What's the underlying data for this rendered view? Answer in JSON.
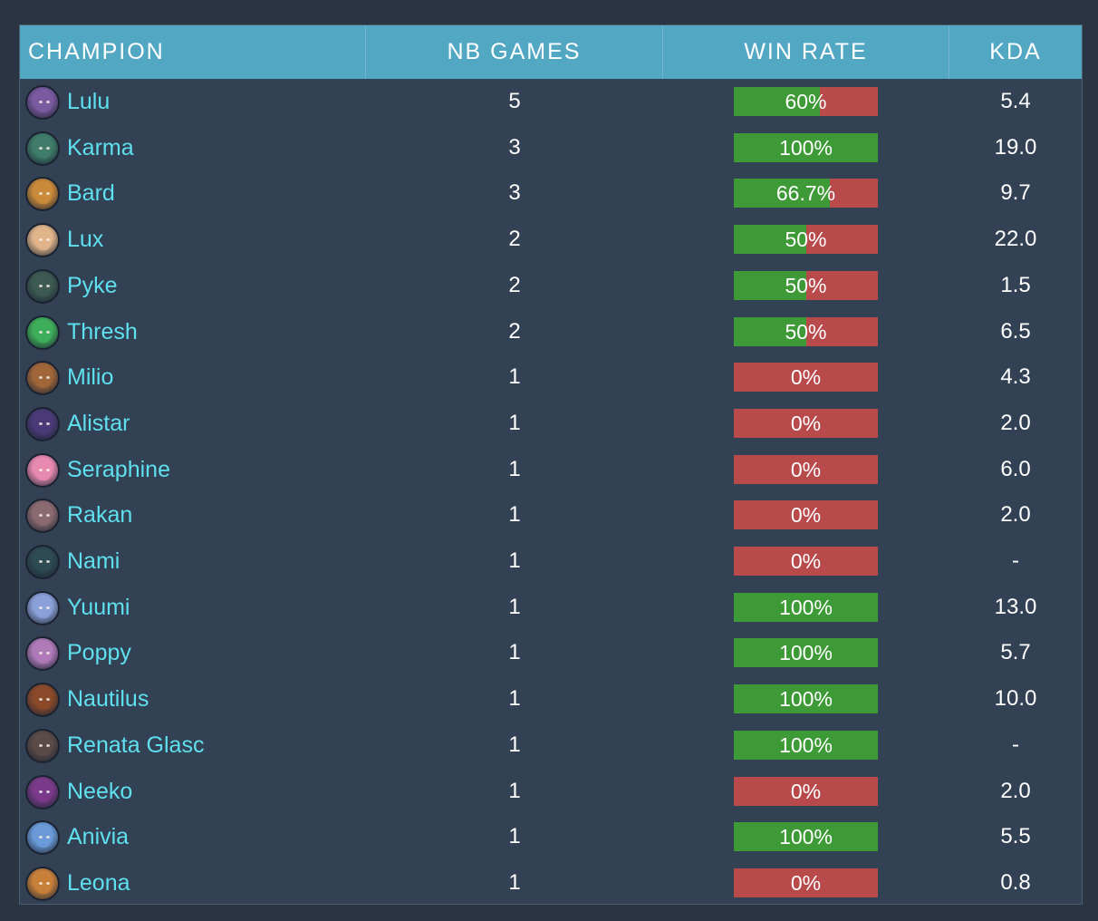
{
  "header": {
    "champion": "CHAMPION",
    "nb_games": "NB GAMES",
    "win_rate": "WIN RATE",
    "kda": "KDA"
  },
  "colors": {
    "header_bg": "#52a7c3",
    "table_bg": "#324153",
    "page_bg": "#2a3442",
    "name_text": "#5fe0ef",
    "win_green": "#3e9a36",
    "loss_red": "#b94a4c"
  },
  "rows": [
    {
      "champion": "Lulu",
      "games": "5",
      "win_rate": "60%",
      "win_fraction": 0.6,
      "kda": "5.4",
      "icon": "lulu-avatar-icon",
      "tone": "#7b5aa0"
    },
    {
      "champion": "Karma",
      "games": "3",
      "win_rate": "100%",
      "win_fraction": 1.0,
      "kda": "19.0",
      "icon": "karma-avatar-icon",
      "tone": "#3f7d6a"
    },
    {
      "champion": "Bard",
      "games": "3",
      "win_rate": "66.7%",
      "win_fraction": 0.667,
      "kda": "9.7",
      "icon": "bard-avatar-icon",
      "tone": "#c98a3a"
    },
    {
      "champion": "Lux",
      "games": "2",
      "win_rate": "50%",
      "win_fraction": 0.5,
      "kda": "22.0",
      "icon": "lux-avatar-icon",
      "tone": "#e0b48a"
    },
    {
      "champion": "Pyke",
      "games": "2",
      "win_rate": "50%",
      "win_fraction": 0.5,
      "kda": "1.5",
      "icon": "pyke-avatar-icon",
      "tone": "#3d5a52"
    },
    {
      "champion": "Thresh",
      "games": "2",
      "win_rate": "50%",
      "win_fraction": 0.5,
      "kda": "6.5",
      "icon": "thresh-avatar-icon",
      "tone": "#3fae5a"
    },
    {
      "champion": "Milio",
      "games": "1",
      "win_rate": "0%",
      "win_fraction": 0.0,
      "kda": "4.3",
      "icon": "milio-avatar-icon",
      "tone": "#a0663a"
    },
    {
      "champion": "Alistar",
      "games": "1",
      "win_rate": "0%",
      "win_fraction": 0.0,
      "kda": "2.0",
      "icon": "alistar-avatar-icon",
      "tone": "#4a3a78"
    },
    {
      "champion": "Seraphine",
      "games": "1",
      "win_rate": "0%",
      "win_fraction": 0.0,
      "kda": "6.0",
      "icon": "seraphine-avatar-icon",
      "tone": "#e88ab0"
    },
    {
      "champion": "Rakan",
      "games": "1",
      "win_rate": "0%",
      "win_fraction": 0.0,
      "kda": "2.0",
      "icon": "rakan-avatar-icon",
      "tone": "#8a6a70"
    },
    {
      "champion": "Nami",
      "games": "1",
      "win_rate": "0%",
      "win_fraction": 0.0,
      "kda": "-",
      "icon": "nami-avatar-icon",
      "tone": "#2e4a52"
    },
    {
      "champion": "Yuumi",
      "games": "1",
      "win_rate": "100%",
      "win_fraction": 1.0,
      "kda": "13.0",
      "icon": "yuumi-avatar-icon",
      "tone": "#8aa0d8"
    },
    {
      "champion": "Poppy",
      "games": "1",
      "win_rate": "100%",
      "win_fraction": 1.0,
      "kda": "5.7",
      "icon": "poppy-avatar-icon",
      "tone": "#b07ab8"
    },
    {
      "champion": "Nautilus",
      "games": "1",
      "win_rate": "100%",
      "win_fraction": 1.0,
      "kda": "10.0",
      "icon": "nautilus-avatar-icon",
      "tone": "#8a4a2a"
    },
    {
      "champion": "Renata Glasc",
      "games": "1",
      "win_rate": "100%",
      "win_fraction": 1.0,
      "kda": "-",
      "icon": "renata-glasc-avatar-icon",
      "tone": "#5a4a48"
    },
    {
      "champion": "Neeko",
      "games": "1",
      "win_rate": "0%",
      "win_fraction": 0.0,
      "kda": "2.0",
      "icon": "neeko-avatar-icon",
      "tone": "#7a3a8a"
    },
    {
      "champion": "Anivia",
      "games": "1",
      "win_rate": "100%",
      "win_fraction": 1.0,
      "kda": "5.5",
      "icon": "anivia-avatar-icon",
      "tone": "#6a9ad8"
    },
    {
      "champion": "Leona",
      "games": "1",
      "win_rate": "0%",
      "win_fraction": 0.0,
      "kda": "0.8",
      "icon": "leona-avatar-icon",
      "tone": "#c8803a"
    }
  ]
}
